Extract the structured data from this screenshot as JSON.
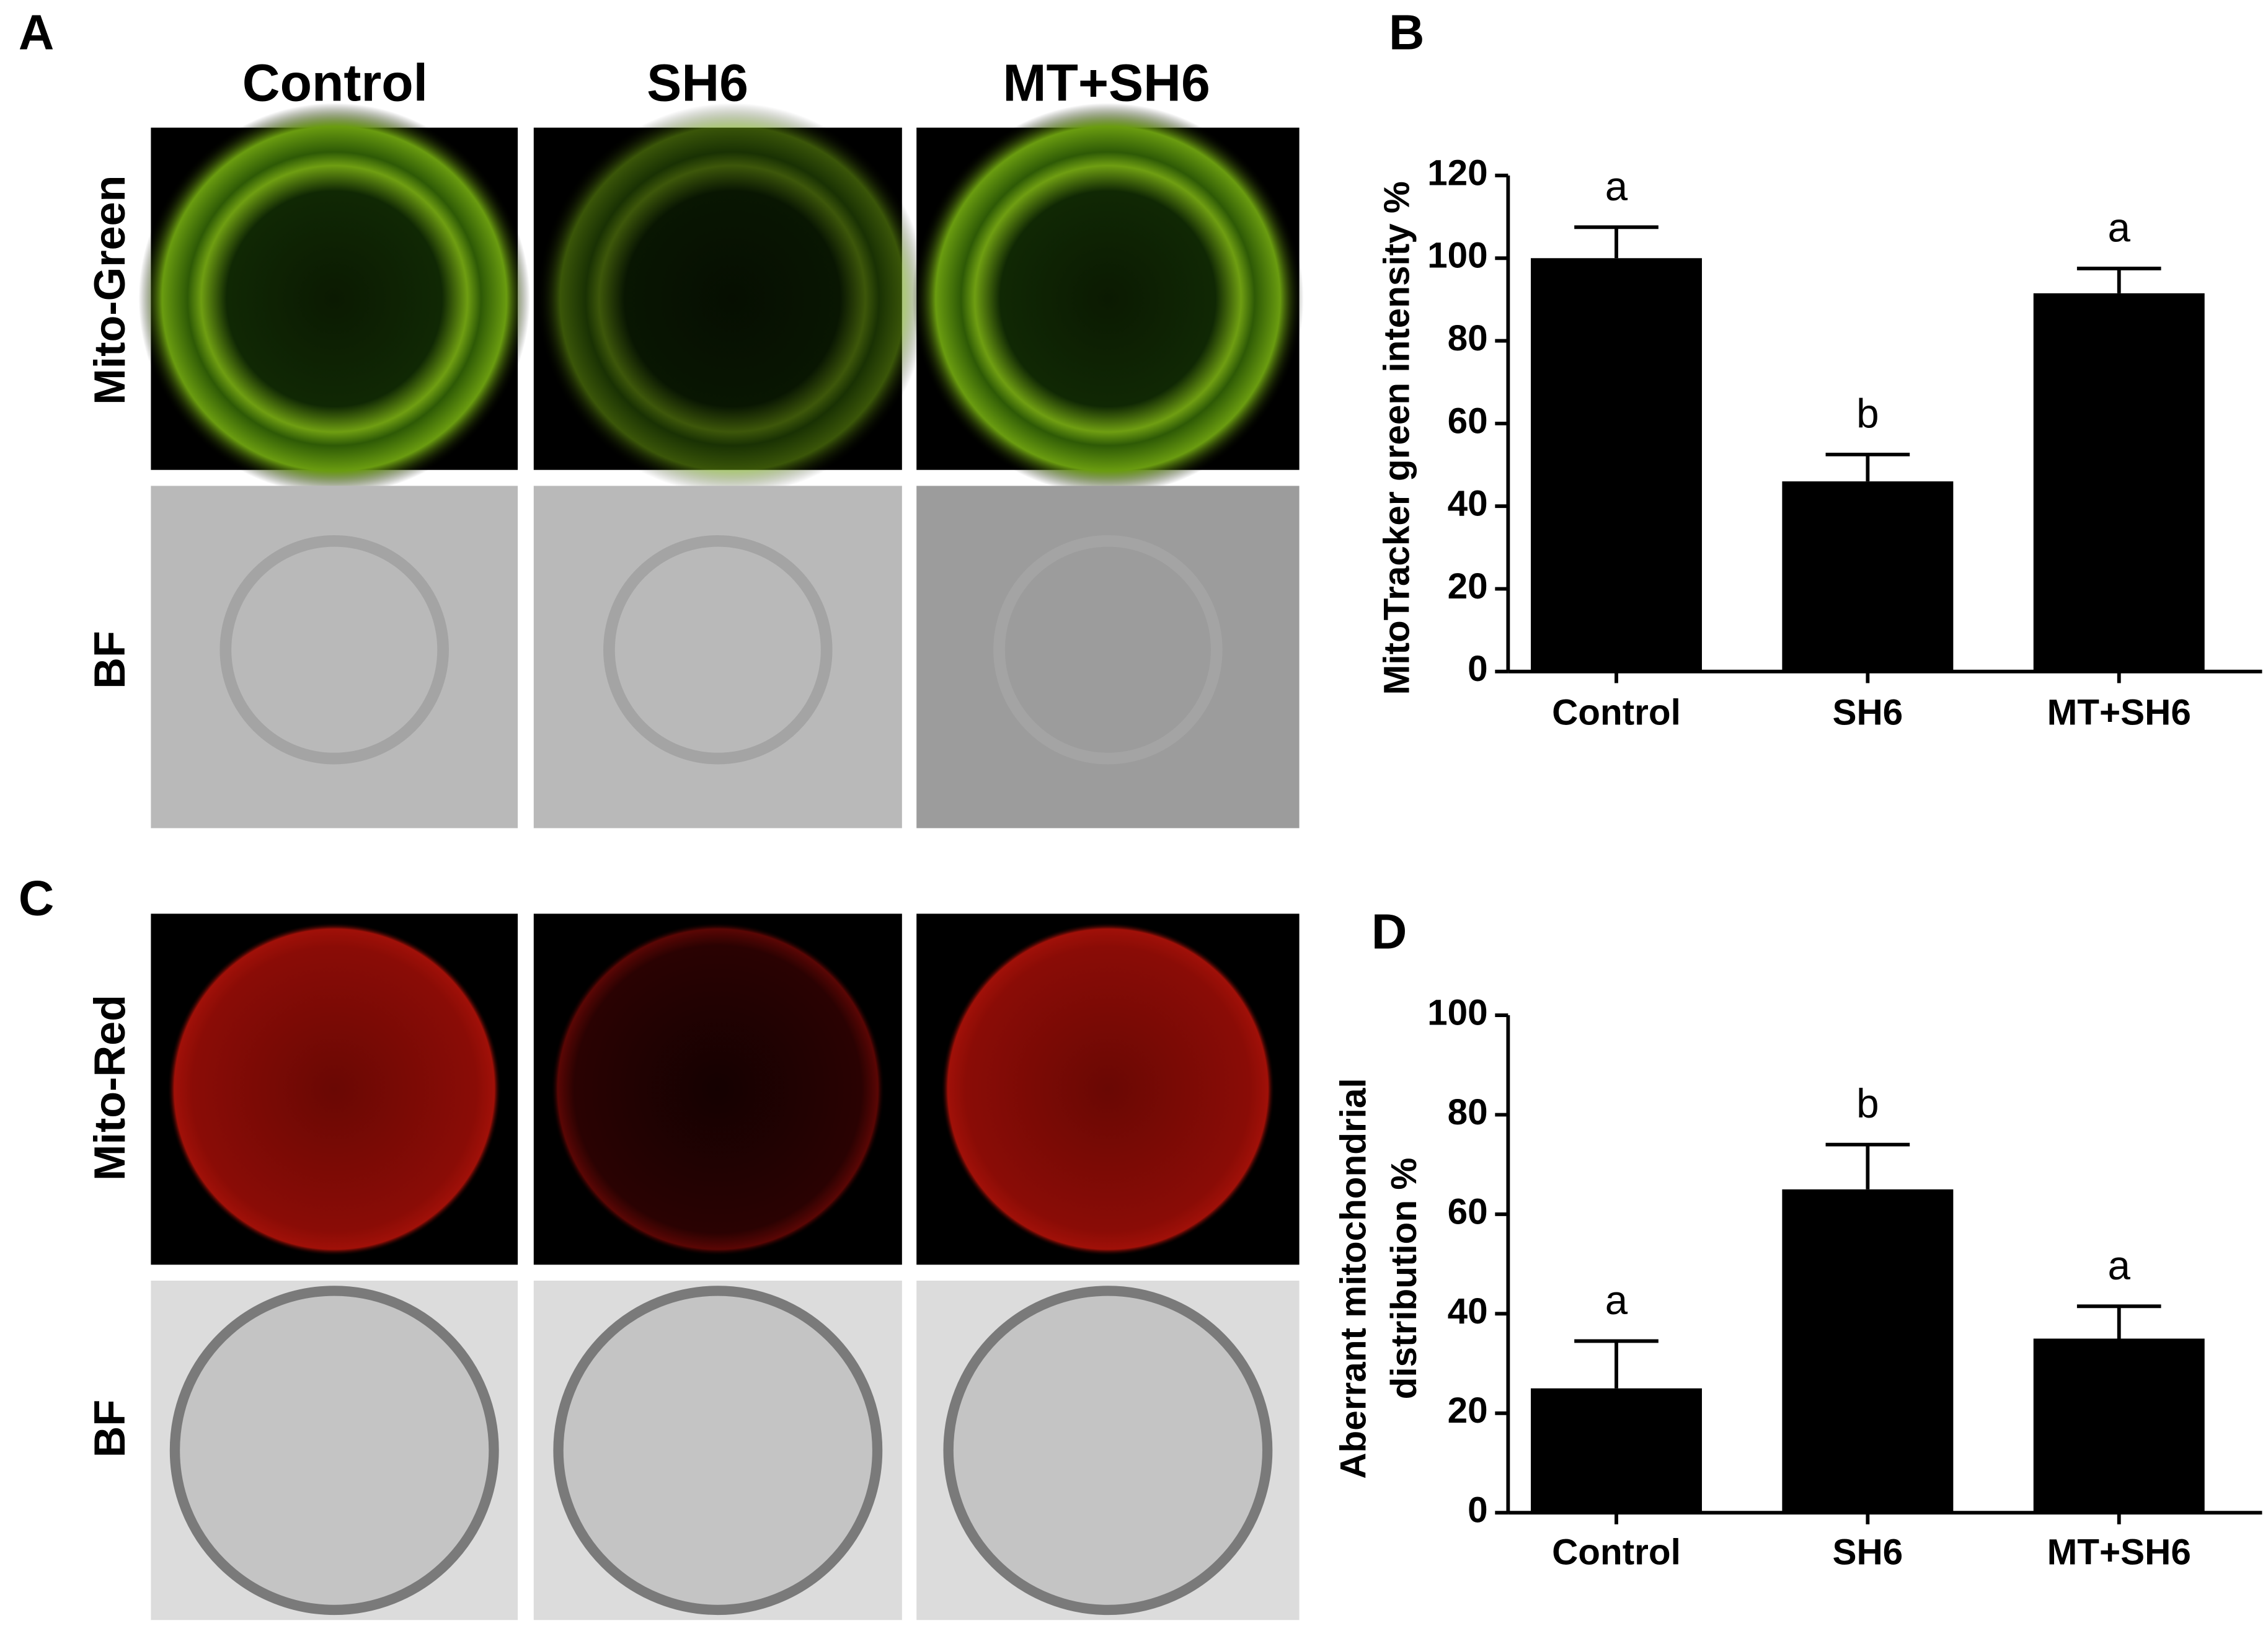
{
  "figure": {
    "panel_labels": [
      "A",
      "B",
      "C",
      "D"
    ],
    "column_labels": [
      "Control",
      "SH6",
      "MT+SH6"
    ],
    "row_labels": [
      "Mito-Green",
      "BF",
      "Mito-Red",
      "BF"
    ]
  },
  "chart_data": [
    {
      "type": "bar",
      "y_label": [
        "MitoTracker green intensity %"
      ],
      "categories": [
        "Control",
        "SH6",
        "MT+SH6"
      ],
      "values": [
        100,
        46,
        91.5
      ],
      "errors": [
        7.5,
        6.5,
        6
      ],
      "annotations": [
        "a",
        "b",
        "a"
      ],
      "color": "#000000",
      "ylim": [
        0,
        120
      ],
      "yticks": [
        0,
        20,
        40,
        60,
        80,
        100,
        120
      ]
    },
    {
      "type": "bar",
      "y_label": [
        "Aberrant mitochondrial",
        "distribution %"
      ],
      "categories": [
        "Control",
        "SH6",
        "MT+SH6"
      ],
      "values": [
        25,
        65,
        35
      ],
      "errors": [
        9.5,
        9,
        6.5
      ],
      "annotations": [
        "a",
        "b",
        "a"
      ],
      "color": "#000000",
      "ylim": [
        0,
        100
      ],
      "yticks": [
        0,
        20,
        40,
        60,
        80,
        100
      ]
    }
  ]
}
